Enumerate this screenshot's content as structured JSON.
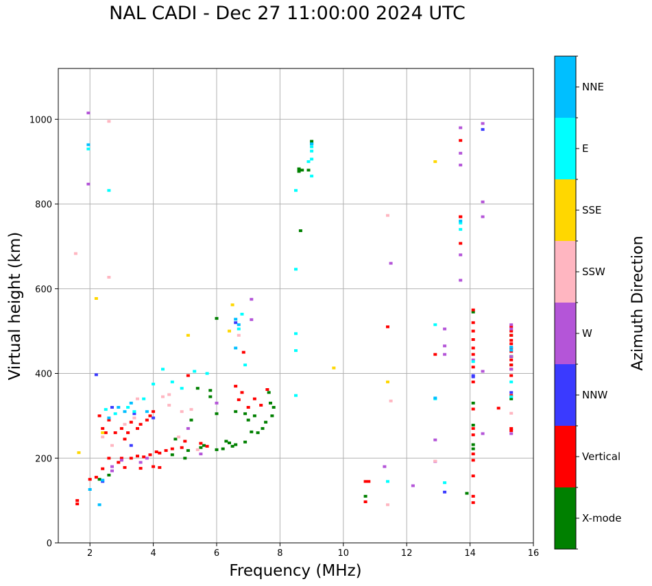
{
  "chart_data": {
    "type": "scatter",
    "title": "NAL CADI - Dec 27 11:00:00 2024 UTC",
    "xlabel": "Frequency (MHz)",
    "ylabel": "Virtual height (km)",
    "xlim": [
      1,
      16
    ],
    "ylim": [
      0,
      1120
    ],
    "x_ticks": [
      2,
      4,
      6,
      8,
      10,
      12,
      14,
      16
    ],
    "y_ticks": [
      0,
      200,
      400,
      600,
      800,
      1000
    ],
    "grid": true,
    "colorbar": {
      "label": "Azimuth Direction",
      "categories": [
        "X-mode",
        "Vertical",
        "NNW",
        "W",
        "SSW",
        "SSE",
        "E",
        "NNE"
      ],
      "colors": [
        "#008000",
        "#ff0000",
        "#3a3aff",
        "#b455d8",
        "#ffb6c1",
        "#ffd700",
        "#00ffff",
        "#00bfff"
      ]
    },
    "series": [
      {
        "name": "X-mode",
        "points": [
          [
            9.0,
            948
          ],
          [
            9.0,
            942
          ],
          [
            8.6,
            883
          ],
          [
            8.7,
            880
          ],
          [
            8.6,
            877
          ],
          [
            8.65,
            737
          ],
          [
            8.9,
            880
          ],
          [
            6.0,
            530
          ],
          [
            5.8,
            360
          ],
          [
            6.0,
            305
          ],
          [
            6.6,
            310
          ],
          [
            6.9,
            305
          ],
          [
            7.0,
            290
          ],
          [
            7.2,
            300
          ],
          [
            7.45,
            270
          ],
          [
            7.55,
            285
          ],
          [
            7.75,
            300
          ],
          [
            7.8,
            320
          ],
          [
            7.7,
            330
          ],
          [
            7.65,
            355
          ],
          [
            7.3,
            260
          ],
          [
            6.3,
            240
          ],
          [
            6.6,
            232
          ],
          [
            6.5,
            228
          ],
          [
            6.9,
            238
          ],
          [
            7.1,
            262
          ],
          [
            6.2,
            222
          ],
          [
            6.0,
            220
          ],
          [
            6.4,
            236
          ],
          [
            5.6,
            230
          ],
          [
            5.5,
            225
          ],
          [
            5.1,
            218
          ],
          [
            4.6,
            208
          ],
          [
            5.0,
            200
          ],
          [
            4.7,
            245
          ],
          [
            5.2,
            290
          ],
          [
            5.4,
            365
          ],
          [
            5.8,
            345
          ],
          [
            10.7,
            110
          ],
          [
            13.9,
            117
          ],
          [
            14.1,
            232
          ],
          [
            14.1,
            222
          ],
          [
            14.1,
            278
          ],
          [
            14.1,
            330
          ],
          [
            14.1,
            545
          ],
          [
            15.3,
            340
          ],
          [
            15.3,
            420
          ],
          [
            15.3,
            440
          ],
          [
            15.3,
            490
          ],
          [
            15.3,
            440
          ],
          [
            2.3,
            150
          ],
          [
            2.6,
            160
          ]
        ]
      },
      {
        "name": "Vertical",
        "points": [
          [
            1.6,
            100
          ],
          [
            1.6,
            92
          ],
          [
            2.0,
            150
          ],
          [
            2.2,
            155
          ],
          [
            2.4,
            175
          ],
          [
            2.3,
            300
          ],
          [
            2.4,
            270
          ],
          [
            2.5,
            260
          ],
          [
            2.6,
            290
          ],
          [
            2.8,
            260
          ],
          [
            3.0,
            270
          ],
          [
            3.1,
            245
          ],
          [
            3.2,
            260
          ],
          [
            3.3,
            285
          ],
          [
            3.5,
            270
          ],
          [
            3.6,
            280
          ],
          [
            3.8,
            290
          ],
          [
            3.9,
            300
          ],
          [
            4.0,
            310
          ],
          [
            2.6,
            200
          ],
          [
            2.9,
            190
          ],
          [
            3.0,
            200
          ],
          [
            3.3,
            200
          ],
          [
            3.5,
            205
          ],
          [
            3.7,
            203
          ],
          [
            3.9,
            208
          ],
          [
            4.1,
            215
          ],
          [
            4.2,
            212
          ],
          [
            4.4,
            218
          ],
          [
            4.6,
            222
          ],
          [
            4.9,
            225
          ],
          [
            3.1,
            178
          ],
          [
            3.6,
            176
          ],
          [
            4.0,
            180
          ],
          [
            4.2,
            178
          ],
          [
            5.0,
            240
          ],
          [
            5.5,
            235
          ],
          [
            5.7,
            228
          ],
          [
            5.1,
            395
          ],
          [
            6.6,
            370
          ],
          [
            6.7,
            338
          ],
          [
            6.8,
            355
          ],
          [
            6.85,
            450
          ],
          [
            7.0,
            320
          ],
          [
            7.2,
            340
          ],
          [
            7.6,
            362
          ],
          [
            7.4,
            325
          ],
          [
            10.7,
            145
          ],
          [
            10.7,
            97
          ],
          [
            10.8,
            145
          ],
          [
            11.4,
            510
          ],
          [
            12.9,
            445
          ],
          [
            13.7,
            770
          ],
          [
            13.7,
            707
          ],
          [
            13.7,
            770
          ],
          [
            13.7,
            950
          ],
          [
            14.1,
            550
          ],
          [
            14.1,
            520
          ],
          [
            14.1,
            500
          ],
          [
            14.1,
            480
          ],
          [
            14.1,
            460
          ],
          [
            14.1,
            445
          ],
          [
            14.1,
            415
          ],
          [
            14.1,
            380
          ],
          [
            14.1,
            316
          ],
          [
            14.1,
            270
          ],
          [
            14.1,
            255
          ],
          [
            14.1,
            210
          ],
          [
            14.1,
            195
          ],
          [
            14.1,
            158
          ],
          [
            14.1,
            110
          ],
          [
            14.1,
            95
          ],
          [
            14.9,
            318
          ],
          [
            15.3,
            510
          ],
          [
            15.3,
            500
          ],
          [
            15.3,
            490
          ],
          [
            15.3,
            478
          ],
          [
            15.3,
            470
          ],
          [
            15.3,
            460
          ],
          [
            15.3,
            452
          ],
          [
            15.3,
            432
          ],
          [
            15.3,
            420
          ],
          [
            15.3,
            410
          ],
          [
            15.3,
            395
          ],
          [
            15.3,
            348
          ],
          [
            15.3,
            270
          ],
          [
            15.3,
            265
          ]
        ]
      },
      {
        "name": "NNW",
        "points": [
          [
            2.2,
            397
          ],
          [
            2.4,
            145
          ],
          [
            2.7,
            320
          ],
          [
            3.4,
            305
          ],
          [
            4.0,
            295
          ],
          [
            3.3,
            230
          ],
          [
            6.6,
            520
          ],
          [
            13.2,
            120
          ],
          [
            14.1,
            395
          ],
          [
            14.1,
            392
          ],
          [
            15.3,
            355
          ],
          [
            14.4,
            976
          ]
        ]
      },
      {
        "name": "W",
        "points": [
          [
            1.95,
            1015
          ],
          [
            1.95,
            847
          ],
          [
            2.7,
            180
          ],
          [
            2.7,
            170
          ],
          [
            3.0,
            195
          ],
          [
            3.6,
            190
          ],
          [
            3.8,
            200
          ],
          [
            5.1,
            270
          ],
          [
            5.5,
            210
          ],
          [
            6.0,
            330
          ],
          [
            7.1,
            527
          ],
          [
            7.1,
            575
          ],
          [
            11.3,
            180
          ],
          [
            11.5,
            660
          ],
          [
            12.2,
            135
          ],
          [
            12.9,
            243
          ],
          [
            12.9,
            192
          ],
          [
            13.2,
            465
          ],
          [
            13.2,
            505
          ],
          [
            13.2,
            445
          ],
          [
            13.7,
            980
          ],
          [
            13.7,
            920
          ],
          [
            13.7,
            892
          ],
          [
            13.7,
            680
          ],
          [
            13.7,
            620
          ],
          [
            14.1,
            432
          ],
          [
            14.4,
            990
          ],
          [
            14.4,
            805
          ],
          [
            14.4,
            770
          ],
          [
            14.4,
            405
          ],
          [
            14.4,
            258
          ],
          [
            15.3,
            515
          ],
          [
            15.3,
            505
          ],
          [
            15.3,
            440
          ],
          [
            15.3,
            410
          ],
          [
            15.3,
            258
          ]
        ]
      },
      {
        "name": "SSW",
        "points": [
          [
            1.55,
            683
          ],
          [
            2.6,
            995
          ],
          [
            2.6,
            627
          ],
          [
            2.4,
            250
          ],
          [
            2.7,
            230
          ],
          [
            3.1,
            280
          ],
          [
            3.4,
            295
          ],
          [
            3.5,
            340
          ],
          [
            4.3,
            345
          ],
          [
            4.5,
            350
          ],
          [
            4.5,
            325
          ],
          [
            4.9,
            310
          ],
          [
            5.2,
            315
          ],
          [
            4.8,
            250
          ],
          [
            5.4,
            220
          ],
          [
            6.7,
            490
          ],
          [
            11.4,
            773
          ],
          [
            11.5,
            335
          ],
          [
            11.4,
            90
          ],
          [
            12.9,
            193
          ],
          [
            15.3,
            306
          ]
        ]
      },
      {
        "name": "SSE",
        "points": [
          [
            1.65,
            213
          ],
          [
            2.2,
            577
          ],
          [
            2.4,
            260
          ],
          [
            5.1,
            490
          ],
          [
            6.4,
            500
          ],
          [
            6.5,
            562
          ],
          [
            9.7,
            413
          ],
          [
            11.4,
            380
          ],
          [
            12.9,
            900
          ]
        ]
      },
      {
        "name": "E",
        "points": [
          [
            1.95,
            930
          ],
          [
            2.6,
            832
          ],
          [
            2.5,
            315
          ],
          [
            2.8,
            305
          ],
          [
            3.2,
            320
          ],
          [
            3.4,
            310
          ],
          [
            3.7,
            340
          ],
          [
            4.0,
            375
          ],
          [
            4.3,
            410
          ],
          [
            4.6,
            380
          ],
          [
            4.9,
            365
          ],
          [
            5.3,
            405
          ],
          [
            5.7,
            400
          ],
          [
            6.7,
            505
          ],
          [
            6.8,
            540
          ],
          [
            6.9,
            420
          ],
          [
            8.5,
            832
          ],
          [
            8.5,
            646
          ],
          [
            8.5,
            494
          ],
          [
            8.5,
            454
          ],
          [
            8.5,
            348
          ],
          [
            8.9,
            900
          ],
          [
            9.0,
            935
          ],
          [
            9.0,
            925
          ],
          [
            9.0,
            906
          ],
          [
            9.0,
            866
          ],
          [
            11.4,
            145
          ],
          [
            12.9,
            515
          ],
          [
            12.9,
            340
          ],
          [
            13.2,
            142
          ],
          [
            13.7,
            740
          ],
          [
            13.7,
            755
          ],
          [
            14.1,
            428
          ],
          [
            15.3,
            380
          ],
          [
            15.3,
            345
          ]
        ]
      },
      {
        "name": "NNE",
        "points": [
          [
            1.95,
            940
          ],
          [
            2.0,
            126
          ],
          [
            2.3,
            90
          ],
          [
            2.4,
            148
          ],
          [
            2.6,
            295
          ],
          [
            2.9,
            320
          ],
          [
            3.1,
            310
          ],
          [
            3.3,
            330
          ],
          [
            3.8,
            310
          ],
          [
            6.6,
            528
          ],
          [
            6.7,
            515
          ],
          [
            6.6,
            460
          ],
          [
            9.0,
            942
          ],
          [
            12.9,
            342
          ],
          [
            13.7,
            760
          ],
          [
            15.3,
            462
          ],
          [
            15.3,
            455
          ]
        ]
      }
    ]
  }
}
